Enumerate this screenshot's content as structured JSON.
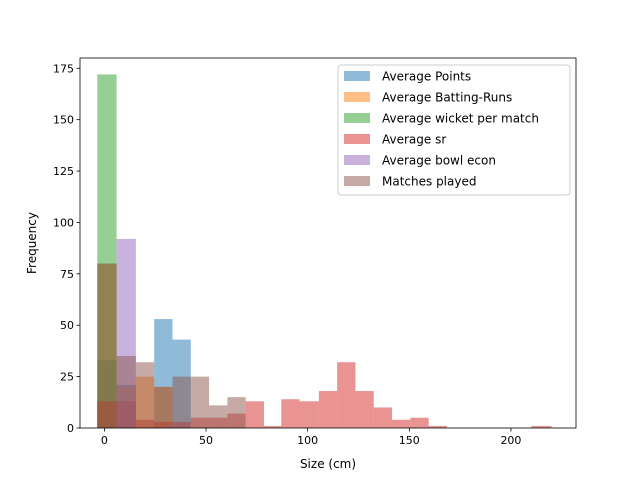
{
  "chart_data": {
    "type": "histogram",
    "xlabel": "Size (cm)",
    "ylabel": "Frequency",
    "xlim": [
      -12,
      232
    ],
    "ylim": [
      0,
      180
    ],
    "xticks": [
      0,
      50,
      100,
      150,
      200
    ],
    "yticks": [
      0,
      25,
      50,
      75,
      100,
      125,
      150,
      175
    ],
    "legend_position": "upper right",
    "bin_width": 8.4,
    "series": [
      {
        "name": "Average Points",
        "color": "#1f77b4",
        "bins": [
          [
            -3.5,
            6,
            33
          ],
          [
            6,
            15.5,
            21
          ],
          [
            24.5,
            33.5,
            53
          ],
          [
            33.5,
            42.5,
            43
          ]
        ]
      },
      {
        "name": "Average Batting-Runs",
        "color": "#ff7f0e",
        "bins": [
          [
            -3.5,
            6,
            80
          ],
          [
            6,
            15.5,
            20
          ],
          [
            15.5,
            24.5,
            25
          ],
          [
            24.5,
            33.5,
            20
          ]
        ]
      },
      {
        "name": "Average wicket per match",
        "color": "#2ca02c",
        "bins": [
          [
            -3.5,
            6,
            172
          ]
        ]
      },
      {
        "name": "Average sr",
        "color": "#d62728",
        "bins": [
          [
            -3.5,
            6,
            13
          ],
          [
            6,
            15.5,
            13
          ],
          [
            15.5,
            24.5,
            4
          ],
          [
            24.5,
            33.5,
            3
          ],
          [
            33.5,
            42.5,
            3
          ],
          [
            42.5,
            51.5,
            5
          ],
          [
            51.5,
            60.5,
            5
          ],
          [
            60.5,
            69.5,
            7
          ],
          [
            69.5,
            78.5,
            13
          ],
          [
            78.5,
            87,
            1
          ],
          [
            87,
            96,
            14
          ],
          [
            96,
            105.5,
            13
          ],
          [
            105.5,
            114.5,
            18
          ],
          [
            114.5,
            123.5,
            32
          ],
          [
            123.5,
            132.5,
            18
          ],
          [
            132.5,
            141.5,
            10
          ],
          [
            141.5,
            150.5,
            4
          ],
          [
            150.5,
            159.5,
            5
          ],
          [
            159.5,
            168.5,
            1
          ],
          [
            210,
            220,
            1
          ]
        ]
      },
      {
        "name": "Average bowl econ",
        "color": "#9467bd",
        "bins": [
          [
            6,
            15.5,
            92
          ]
        ]
      },
      {
        "name": "Matches played",
        "color": "#8c564b",
        "bins": [
          [
            -3.5,
            6,
            80
          ],
          [
            6,
            15.5,
            35
          ],
          [
            15.5,
            24.5,
            32
          ],
          [
            24.5,
            33.5,
            20
          ],
          [
            33.5,
            42.5,
            25
          ],
          [
            42.5,
            51.5,
            25
          ],
          [
            51.5,
            60.5,
            11
          ],
          [
            60.5,
            69.5,
            15
          ]
        ]
      }
    ]
  }
}
